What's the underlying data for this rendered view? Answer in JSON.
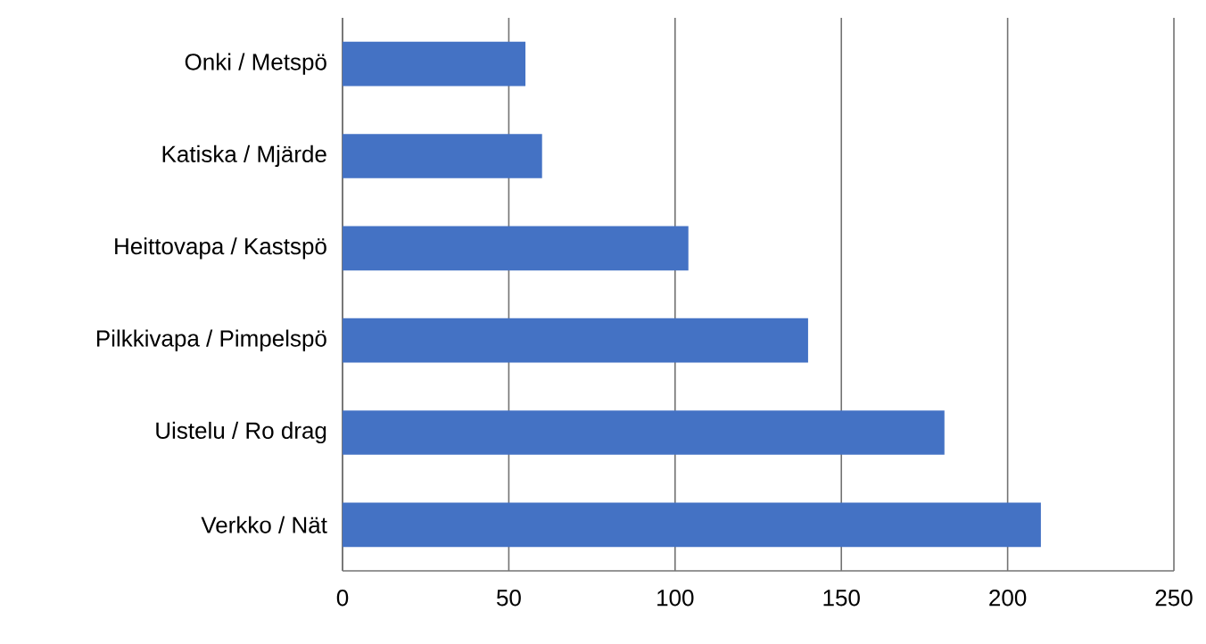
{
  "chart_data": {
    "type": "bar",
    "orientation": "horizontal",
    "categories": [
      "Onki / Metspö",
      "Katiska / Mjärde",
      "Heittovapa / Kastspö",
      "Pilkkivapa / Pimpelspö",
      "Uistelu / Ro drag",
      "Verkko / Nät"
    ],
    "values": [
      55,
      60,
      104,
      140,
      181,
      210
    ],
    "color": "#4472c4",
    "xlim": [
      0,
      250
    ],
    "xticks": [
      0,
      50,
      100,
      150,
      200,
      250
    ],
    "grid": "x"
  }
}
